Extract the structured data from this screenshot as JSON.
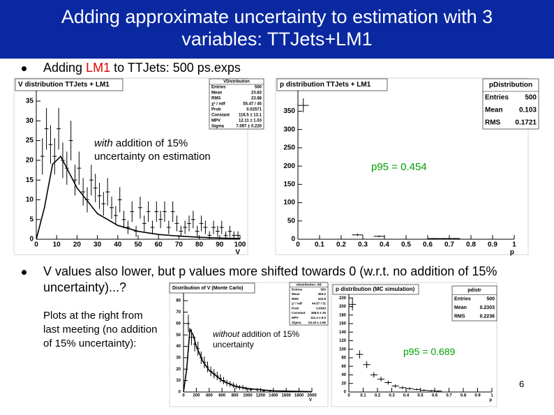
{
  "title": "Adding approximate uncertainty to estimation with 3 variables: TTJets+LM1",
  "bullets": [
    [
      "Adding ",
      "LM1",
      " to TTJets: 500 ps.exps"
    ],
    [
      "V values also lower, but p values more shifted towards 0 (w.r.t. no addition of 15% uncertainty)...?"
    ]
  ],
  "side_note": "Plots at the right from last meeting (no addition of 15% uncertainty):",
  "page_number": "6",
  "chart_data": [
    {
      "type": "errorbar",
      "title": "V distribution TTJets + LM1",
      "x_label": "V",
      "x": [
        3,
        5,
        7,
        9,
        11,
        13,
        15,
        17,
        19,
        21,
        23,
        25,
        27,
        29,
        31,
        33,
        35,
        37,
        39,
        41,
        43,
        45,
        47,
        49,
        51,
        53,
        55,
        57,
        59,
        61,
        63,
        65,
        67,
        69,
        71,
        73,
        75,
        77,
        79,
        81,
        83,
        85,
        87,
        89,
        91,
        93,
        95,
        97,
        99
      ],
      "values": [
        21,
        28,
        24,
        21,
        28,
        20,
        18,
        25,
        15,
        18,
        12,
        10,
        15,
        13,
        11,
        9,
        12,
        8,
        6,
        10,
        5,
        3,
        7,
        2,
        8,
        4,
        7,
        3,
        7,
        5,
        7,
        3,
        7,
        4,
        2,
        3,
        4,
        5,
        2,
        4,
        3,
        1,
        3,
        2,
        3,
        1,
        2,
        1,
        1
      ],
      "errors": [
        4.6,
        5.3,
        4.9,
        4.6,
        5.3,
        4.5,
        4.2,
        5,
        3.9,
        4.2,
        3.5,
        3.2,
        3.9,
        3.6,
        3.3,
        3,
        3.5,
        2.8,
        2.4,
        3.2,
        2.2,
        1.7,
        2.6,
        1.4,
        2.8,
        2,
        2.6,
        1.7,
        2.6,
        2.2,
        2.6,
        1.7,
        2.6,
        2,
        1.4,
        1.7,
        2,
        2.2,
        1.4,
        2,
        1.7,
        1,
        1.7,
        1.4,
        1.7,
        1,
        1.4,
        1,
        1
      ],
      "x_error": 1,
      "color": "#000000",
      "fit": {
        "x": [
          0,
          4,
          8,
          12,
          16,
          20,
          30,
          40,
          50,
          60,
          70,
          80,
          90,
          100
        ],
        "values": [
          0,
          8,
          19,
          21,
          17,
          13,
          6.5,
          3.5,
          2,
          1.2,
          0.8,
          0.5,
          0.3,
          0.2
        ]
      },
      "xlim": [
        0,
        100
      ],
      "xticks": [
        0,
        10,
        20,
        30,
        40,
        50,
        60,
        70,
        80,
        90,
        100
      ],
      "ylim": [
        0,
        38
      ],
      "yticks": [
        0,
        5,
        10,
        15,
        20,
        25,
        30,
        35
      ],
      "stats": {
        "title": "VDistribution",
        "rows": [
          {
            "label": "Entries",
            "value": "500"
          },
          {
            "label": "Mean",
            "value": "23.83"
          },
          {
            "label": "RMS",
            "value": "23.88"
          },
          {
            "label": "χ² / ndf",
            "value": "55.47 / 45"
          },
          {
            "label": "Prob",
            "value": "0.02571"
          },
          {
            "label": "Constant",
            "value": "116.5 ± 13.1"
          },
          {
            "label": "MPV",
            "value": "12.11 ± 1.03"
          },
          {
            "label": "Sigma",
            "value": "7.097 ± 0.220"
          }
        ]
      },
      "annotation": [
        "with",
        " addition of 15% uncertainty on estimation"
      ],
      "annotation_color": "#000000"
    },
    {
      "type": "errorbar",
      "title": "p distribution TTJets + LM1",
      "x_label": "p",
      "x": [
        0.025,
        0.275,
        0.375,
        0.625,
        0.675,
        0.725
      ],
      "values": [
        366,
        12,
        8,
        2,
        2,
        2
      ],
      "errors": [
        19.1,
        3.5,
        2.8,
        1.4,
        1.4,
        1.4
      ],
      "x_error": 0.025,
      "color": "#000000",
      "xlim": [
        0,
        1
      ],
      "xticks": [
        0,
        0.1,
        0.2,
        0.3,
        0.4,
        0.5,
        0.6,
        0.7,
        0.8,
        0.9,
        1
      ],
      "ylim": [
        0,
        410
      ],
      "yticks": [
        0,
        50,
        100,
        150,
        200,
        250,
        300,
        350
      ],
      "stats": {
        "title": "pDistribution",
        "rows": [
          {
            "label": "Entries",
            "value": "500"
          },
          {
            "label": "Mean",
            "value": "0.103"
          },
          {
            "label": "RMS",
            "value": "0.1721"
          }
        ]
      },
      "annotation": [
        "p95 = 0.454"
      ],
      "annotation_color": "#00a000"
    },
    {
      "type": "errorbar",
      "title": "Distribution of V (Monte Carlo)",
      "x_label": "V",
      "x": [
        75,
        125,
        175,
        225,
        275,
        325,
        375,
        425,
        475,
        525,
        575,
        625,
        675,
        725,
        775,
        825,
        875,
        925,
        975,
        1050,
        1150,
        1250,
        1350
      ],
      "values": [
        60,
        48,
        42,
        38,
        30,
        26,
        22,
        18,
        16,
        14,
        12,
        10,
        8,
        7,
        6,
        5,
        4,
        4,
        3,
        2,
        2,
        1,
        1
      ],
      "errors": [
        7.7,
        6.9,
        6.5,
        6.2,
        5.5,
        5.1,
        4.7,
        4.2,
        4,
        3.7,
        3.5,
        3.2,
        2.8,
        2.6,
        2.4,
        2.2,
        2,
        2,
        1.7,
        1.4,
        1.4,
        1,
        1
      ],
      "x_error": 25,
      "color": "#000000",
      "fit": {
        "x": [
          0,
          50,
          100,
          150,
          200,
          300,
          400,
          600,
          800,
          1000,
          1400,
          2000
        ],
        "values": [
          0,
          20,
          55,
          50,
          40,
          27,
          19,
          10,
          5,
          3,
          1,
          0.3
        ]
      },
      "xlim": [
        0,
        2000
      ],
      "xticks": [
        0,
        200,
        400,
        600,
        800,
        1000,
        1200,
        1400,
        1600,
        1800,
        2000
      ],
      "ylim": [
        0,
        88
      ],
      "yticks": [
        0,
        10,
        20,
        30,
        40,
        50,
        60,
        70,
        80
      ],
      "stats": {
        "title": "vDistribution_ttB",
        "rows": [
          {
            "label": "Entries",
            "value": "500"
          },
          {
            "label": "Mean",
            "value": "363.2"
          },
          {
            "label": "RMS",
            "value": "332.8"
          },
          {
            "label": "χ² / ndf",
            "value": "44.57 / 31"
          },
          {
            "label": "Prob",
            "value": "0.0543"
          },
          {
            "label": "Constant",
            "value": "358.6 ± 26"
          },
          {
            "label": "MPV",
            "value": "111.3 ± 8.0"
          },
          {
            "label": "Sigma",
            "value": "53.33 ± 2.96"
          }
        ]
      },
      "annotation": [
        "without",
        " addition of 15% uncertainty"
      ],
      "annotation_color": "#000000"
    },
    {
      "type": "errorbar",
      "title": "p distribution (MC simulation)",
      "x_label": "p",
      "x": [
        0.025,
        0.075,
        0.125,
        0.175,
        0.225,
        0.275,
        0.325,
        0.375,
        0.425,
        0.475,
        0.525,
        0.575,
        0.625
      ],
      "values": [
        205,
        88,
        64,
        40,
        30,
        22,
        14,
        10,
        8,
        6,
        4,
        3,
        2
      ],
      "errors": [
        14.3,
        9.4,
        8,
        6.3,
        5.5,
        4.7,
        3.7,
        3.2,
        2.8,
        2.4,
        2,
        1.7,
        1.4
      ],
      "x_error": 0.025,
      "color": "#000000",
      "xlim": [
        0,
        1
      ],
      "xticks": [
        0,
        0.1,
        0.2,
        0.3,
        0.4,
        0.5,
        0.6,
        0.7,
        0.8,
        0.9,
        1
      ],
      "ylim": [
        0,
        235
      ],
      "yticks": [
        0,
        20,
        40,
        60,
        80,
        100,
        120,
        140,
        160,
        180,
        200,
        220
      ],
      "stats": {
        "title": "pdistr",
        "rows": [
          {
            "label": "Entries",
            "value": "500"
          },
          {
            "label": "Mean",
            "value": "0.2303"
          },
          {
            "label": "RMS",
            "value": "0.2236"
          }
        ]
      },
      "annotation": [
        "p95 = 0.689"
      ],
      "annotation_color": "#00a000"
    }
  ]
}
